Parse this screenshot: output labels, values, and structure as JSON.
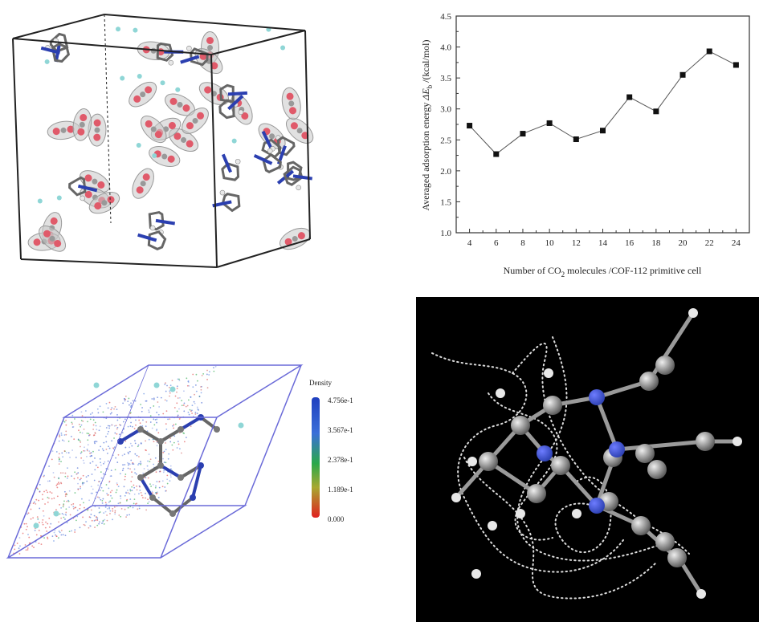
{
  "figure": {
    "colors": {
      "nitrogen": "#2b3fb0",
      "carbon": "#7a7a7a",
      "hydrogen": "#e8e8e8",
      "oxygen": "#e05a6a",
      "fluorine": "#8fd6d6",
      "density_high": "#1f3fbf",
      "density_mid": "#2aa84a",
      "density_low": "#e02020",
      "background_dark": "#000000"
    },
    "density_legend": {
      "title": "Density",
      "ticks": [
        "4.756e-1",
        "3.567e-1",
        "2.378e-1",
        "1.189e-1",
        "0.000"
      ]
    }
  },
  "chart_data": {
    "type": "line",
    "title": "",
    "xlabel_prefix": "Number of CO",
    "xlabel_sub": "2",
    "xlabel_suffix": " molecules /COF-112 primitive cell",
    "ylabel_main": "Averaged adsorption energy ",
    "ylabel_symbol": "ΔE",
    "ylabel_sub": "b",
    "ylabel_suffix": " /(kcal/mol)",
    "x": [
      4,
      6,
      8,
      10,
      12,
      14,
      16,
      18,
      20,
      22,
      24
    ],
    "y": [
      2.73,
      2.27,
      2.6,
      2.77,
      2.51,
      2.65,
      3.19,
      2.96,
      3.55,
      3.93,
      3.71
    ],
    "xticks": [
      "4",
      "6",
      "8",
      "10",
      "12",
      "14",
      "16",
      "18",
      "20",
      "22",
      "24"
    ],
    "yticks": [
      "1.0",
      "1.5",
      "2.0",
      "2.5",
      "3.0",
      "3.5",
      "4.0",
      "4.5"
    ],
    "xlim": [
      3,
      25
    ],
    "ylim": [
      1.0,
      4.5
    ],
    "grid": false,
    "marker": "square",
    "line_color": "#555555",
    "marker_color": "#111111"
  }
}
